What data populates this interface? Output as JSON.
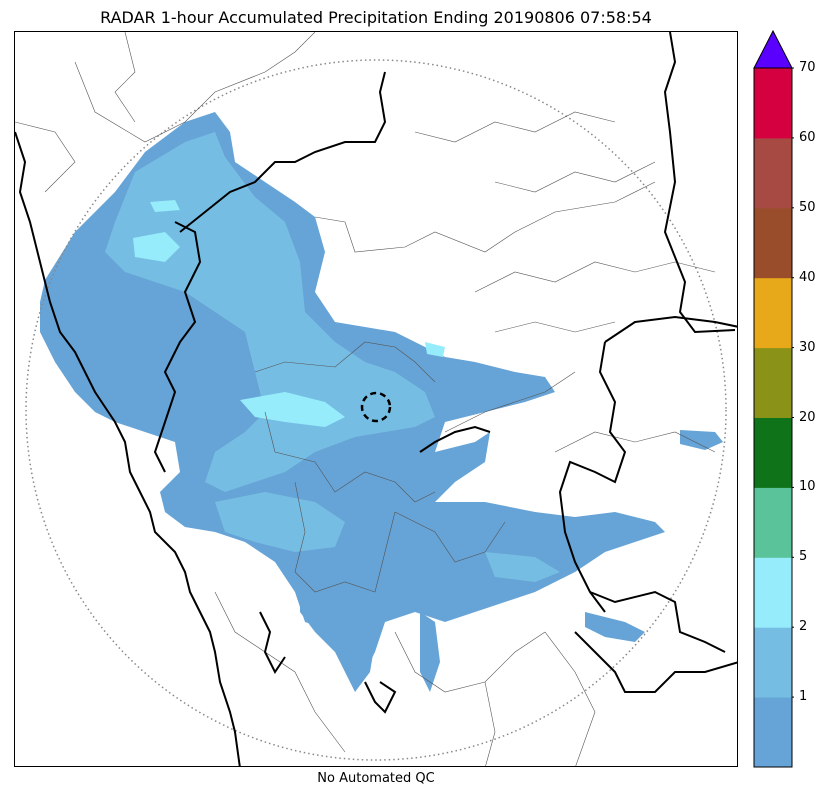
{
  "title": "RADAR 1-hour Accumulated Precipitation Ending 20190806 07:58:54",
  "footer": "No Automated QC",
  "map": {
    "radar_marker": "dashed-circle",
    "range_ring": "dotted-circle",
    "colors": {
      "coastline": "#000000",
      "state_border": "#000000",
      "district_border": "#555555",
      "range_ring": "#888888"
    }
  },
  "colorbar": {
    "extend": "max",
    "over_color": "#5a00ff",
    "tick_labels": [
      "1",
      "2",
      "5",
      "10",
      "20",
      "30",
      "40",
      "50",
      "60",
      "70"
    ],
    "bins": [
      {
        "range": "0-1",
        "color": "#66a3d6"
      },
      {
        "range": "1-2",
        "color": "#76bde3"
      },
      {
        "range": "2-5",
        "color": "#96ecfb"
      },
      {
        "range": "5-10",
        "color": "#5bc39a"
      },
      {
        "range": "10-20",
        "color": "#0f7419"
      },
      {
        "range": "20-30",
        "color": "#8a9218"
      },
      {
        "range": "30-40",
        "color": "#e7a81a"
      },
      {
        "range": "40-50",
        "color": "#9a4d2a"
      },
      {
        "range": "50-60",
        "color": "#a84a44"
      },
      {
        "range": "60-70",
        "color": "#d50040"
      }
    ]
  }
}
